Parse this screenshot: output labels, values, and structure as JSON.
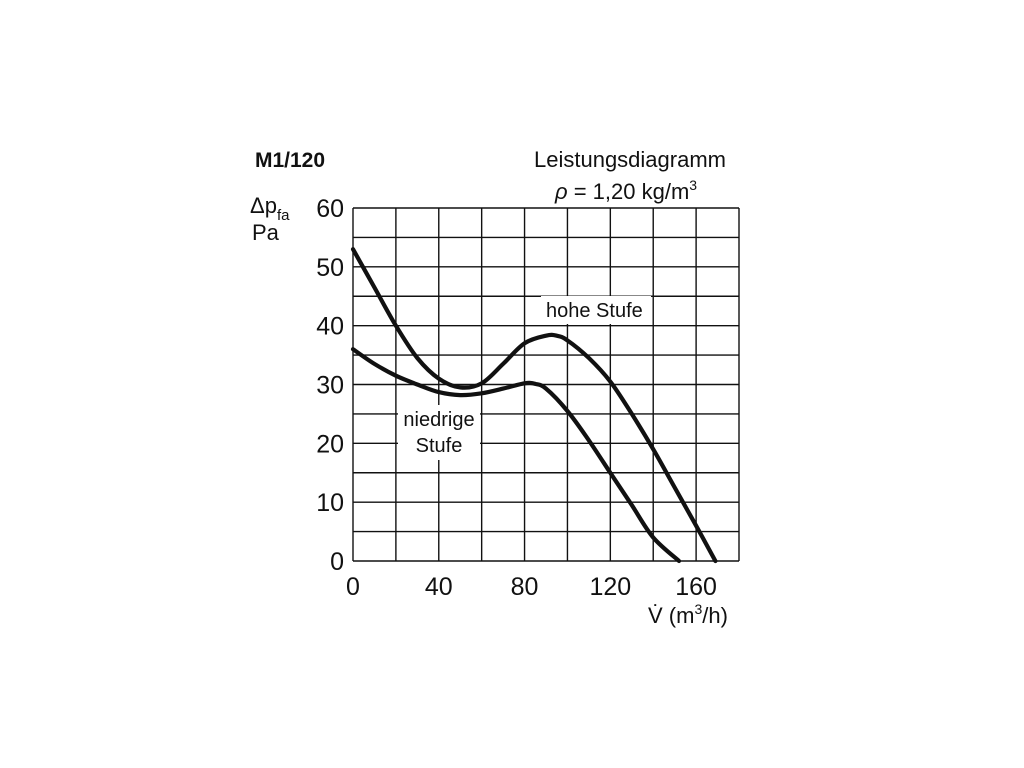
{
  "model": "M1/120",
  "chart_data": {
    "type": "line",
    "title": "Leistungsdiagramm",
    "density_symbol": "ρ",
    "density_text": " = 1,20 kg/m",
    "density_sup": "3",
    "ylabel_delta": "Δp",
    "ylabel_sub": "fa",
    "ylabel_unit": "Pa",
    "xlabel_main": "V̇ (m",
    "xlabel_sup": "3",
    "xlabel_end": "/h)",
    "xlim": [
      0,
      180
    ],
    "ylim": [
      0,
      60
    ],
    "xticks": [
      0,
      40,
      80,
      120,
      160
    ],
    "yticks": [
      0,
      10,
      20,
      30,
      40,
      50,
      60
    ],
    "grid": true,
    "series": [
      {
        "name": "hohe Stufe",
        "x": [
          0,
          10,
          20,
          30,
          40,
          50,
          60,
          70,
          80,
          90,
          95,
          100,
          110,
          120,
          130,
          140,
          150,
          160,
          169
        ],
        "y": [
          53,
          46.5,
          40,
          34.5,
          31,
          29.5,
          30.2,
          33.5,
          37,
          38.3,
          38.3,
          37.5,
          34.5,
          30.5,
          25,
          19,
          12.5,
          6,
          0
        ]
      },
      {
        "name": "niedrige Stufe",
        "x": [
          0,
          10,
          20,
          30,
          40,
          50,
          60,
          70,
          80,
          85,
          90,
          100,
          110,
          120,
          130,
          140,
          152
        ],
        "y": [
          36,
          33.5,
          31.5,
          30,
          28.7,
          28.2,
          28.5,
          29.3,
          30.2,
          30.1,
          29.3,
          25.5,
          20.5,
          15,
          9.5,
          4,
          0
        ]
      }
    ]
  }
}
